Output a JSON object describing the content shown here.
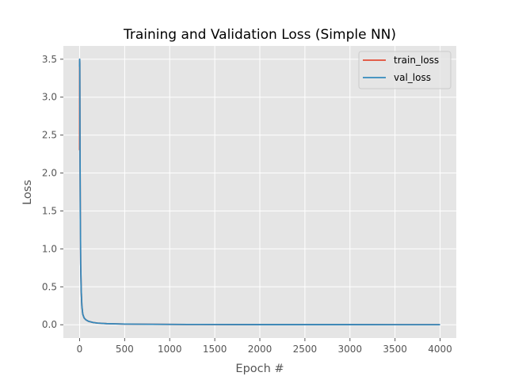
{
  "chart_data": {
    "type": "line",
    "title": "Training and Validation Loss (Simple NN)",
    "xlabel": "Epoch #",
    "ylabel": "Loss",
    "xlim": [
      -180,
      4180
    ],
    "ylim": [
      -0.175,
      3.675
    ],
    "xticks": [
      0,
      500,
      1000,
      1500,
      2000,
      2500,
      3000,
      3500,
      4000
    ],
    "yticks": [
      0.0,
      0.5,
      1.0,
      1.5,
      2.0,
      2.5,
      3.0,
      3.5
    ],
    "grid": true,
    "legend_position": "upper-right",
    "series": [
      {
        "name": "train_loss",
        "color": "#E24A33",
        "x": [
          0,
          1,
          2,
          3,
          5,
          8,
          12,
          18,
          25,
          35,
          50,
          70,
          100,
          150,
          200,
          300,
          500,
          800,
          1200,
          2000,
          3000,
          4000
        ],
        "y": [
          2.3,
          3.5,
          3.45,
          3.0,
          2.2,
          1.4,
          0.8,
          0.45,
          0.25,
          0.14,
          0.09,
          0.065,
          0.045,
          0.03,
          0.022,
          0.015,
          0.009,
          0.006,
          0.004,
          0.002,
          0.0015,
          0.001
        ]
      },
      {
        "name": "val_loss",
        "color": "#348ABD",
        "x": [
          0,
          1,
          2,
          3,
          5,
          8,
          12,
          18,
          25,
          35,
          50,
          70,
          100,
          150,
          200,
          300,
          500,
          800,
          1200,
          2000,
          3000,
          4000
        ],
        "y": [
          3.4,
          3.5,
          3.45,
          3.0,
          2.2,
          1.4,
          0.8,
          0.45,
          0.25,
          0.14,
          0.09,
          0.065,
          0.045,
          0.03,
          0.022,
          0.015,
          0.009,
          0.006,
          0.004,
          0.002,
          0.0015,
          0.001
        ]
      }
    ]
  },
  "colors": {
    "plot_background": "#E5E5E5",
    "grid": "#FFFFFF",
    "tick": "#555555"
  }
}
